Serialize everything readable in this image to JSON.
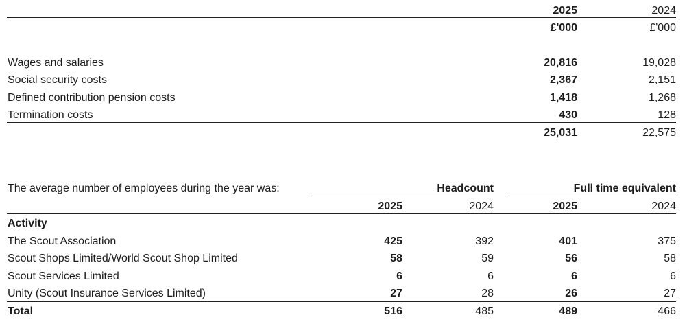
{
  "table1": {
    "headers": {
      "col1_year": "2025",
      "col2_year": "2024",
      "col1_unit": "£'000",
      "col2_unit": "£'000"
    },
    "rows": [
      {
        "label": "Wages and salaries",
        "v2025": "20,816",
        "v2024": "19,028"
      },
      {
        "label": "Social security costs",
        "v2025": "2,367",
        "v2024": "2,151"
      },
      {
        "label": "Defined contribution pension costs",
        "v2025": "1,418",
        "v2024": "1,268"
      },
      {
        "label": "Termination costs",
        "v2025": "430",
        "v2024": "128"
      }
    ],
    "total": {
      "v2025": "25,031",
      "v2024": "22,575"
    }
  },
  "table2": {
    "intro": "The average number of employees during the year was:",
    "group_headers": {
      "headcount": "Headcount",
      "fte": "Full time equivalent"
    },
    "years": {
      "hc2025": "2025",
      "hc2024": "2024",
      "fte2025": "2025",
      "fte2024": "2024"
    },
    "section_label": "Activity",
    "rows": [
      {
        "label": "The Scout Association",
        "hc2025": "425",
        "hc2024": "392",
        "fte2025": "401",
        "fte2024": "375"
      },
      {
        "label": "Scout Shops Limited/World Scout Shop Limited",
        "hc2025": "58",
        "hc2024": "59",
        "fte2025": "56",
        "fte2024": "58"
      },
      {
        "label": "Scout Services Limited",
        "hc2025": "6",
        "hc2024": "6",
        "fte2025": "6",
        "fte2024": "6"
      },
      {
        "label": "Unity (Scout Insurance Services Limited)",
        "hc2025": "27",
        "hc2024": "28",
        "fte2025": "26",
        "fte2024": "27"
      }
    ],
    "total": {
      "label": "Total",
      "hc2025": "516",
      "hc2024": "485",
      "fte2025": "489",
      "fte2024": "466"
    }
  }
}
